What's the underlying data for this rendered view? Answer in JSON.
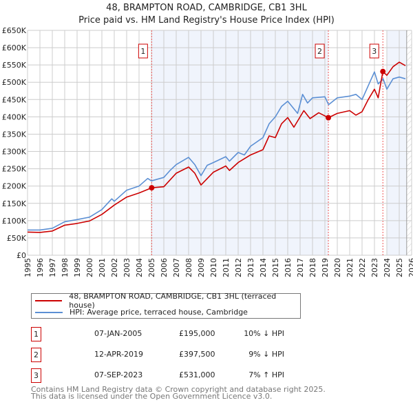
{
  "title": "48, BRAMPTON ROAD, CAMBRIDGE, CB1 3HL",
  "subtitle": "Price paid vs. HM Land Registry's House Price Index (HPI)",
  "chart_data": {
    "type": "line",
    "xlim": [
      1995,
      2026
    ],
    "ylim": [
      0,
      650000
    ],
    "x_ticks": [
      "1995",
      "1996",
      "1997",
      "1998",
      "1999",
      "2000",
      "2001",
      "2002",
      "2003",
      "2004",
      "2005",
      "2006",
      "2007",
      "2008",
      "2009",
      "2010",
      "2011",
      "2012",
      "2013",
      "2014",
      "2015",
      "2016",
      "2017",
      "2018",
      "2019",
      "2020",
      "2021",
      "2022",
      "2023",
      "2024",
      "2025",
      "2026"
    ],
    "y_ticks": [
      {
        "v": 0,
        "label": "£0"
      },
      {
        "v": 50000,
        "label": "£50K"
      },
      {
        "v": 100000,
        "label": "£100K"
      },
      {
        "v": 150000,
        "label": "£150K"
      },
      {
        "v": 200000,
        "label": "£200K"
      },
      {
        "v": 250000,
        "label": "£250K"
      },
      {
        "v": 300000,
        "label": "£300K"
      },
      {
        "v": 350000,
        "label": "£350K"
      },
      {
        "v": 400000,
        "label": "£400K"
      },
      {
        "v": 450000,
        "label": "£450K"
      },
      {
        "v": 500000,
        "label": "£500K"
      },
      {
        "v": 550000,
        "label": "£550K"
      },
      {
        "v": 600000,
        "label": "£600K"
      },
      {
        "v": 650000,
        "label": "£650K"
      }
    ],
    "grid": true,
    "series": [
      {
        "name": "48, BRAMPTON ROAD, CAMBRIDGE, CB1 3HL (terraced house)",
        "color": "#cc0000",
        "x": [
          1995,
          1996,
          1997,
          1998,
          1999,
          2000,
          2001,
          2002,
          2003,
          2004,
          2005.02,
          2006,
          2007,
          2008,
          2008.5,
          2009,
          2010,
          2011,
          2011.3,
          2012,
          2013,
          2014,
          2014.5,
          2015,
          2015.5,
          2016,
          2016.5,
          2017.3,
          2017.8,
          2018.5,
          2019.28,
          2020,
          2021,
          2021.5,
          2022,
          2022.5,
          2023,
          2023.3,
          2023.68,
          2024,
          2024.5,
          2025,
          2025.5
        ],
        "y": [
          67000,
          66000,
          70000,
          87000,
          92000,
          99000,
          118000,
          145000,
          168000,
          180000,
          195000,
          198000,
          237000,
          255000,
          237000,
          203000,
          240000,
          258000,
          245000,
          268000,
          290000,
          305000,
          345000,
          340000,
          380000,
          398000,
          370000,
          418000,
          395000,
          412000,
          397500,
          410000,
          418000,
          405000,
          415000,
          450000,
          480000,
          455000,
          531000,
          520000,
          545000,
          558000,
          548000
        ]
      },
      {
        "name": "HPI: Average price, terraced house, Cambridge",
        "color": "#5b8fd4",
        "x": [
          1995,
          1996,
          1997,
          1998,
          1999,
          2000,
          2001,
          2001.8,
          2002,
          2003,
          2004,
          2004.7,
          2005,
          2006,
          2006.5,
          2007,
          2008,
          2008.5,
          2009,
          2009.5,
          2010,
          2011,
          2011.3,
          2012,
          2012.5,
          2013,
          2014,
          2014.5,
          2015,
          2015.5,
          2016,
          2016.8,
          2017.2,
          2017.6,
          2018,
          2019,
          2019.3,
          2020,
          2021,
          2021.5,
          2022,
          2022.5,
          2023,
          2023.3,
          2023.7,
          2024,
          2024.5,
          2025,
          2025.5
        ],
        "y": [
          73000,
          73000,
          78000,
          97000,
          103000,
          110000,
          132000,
          163000,
          156000,
          188000,
          200000,
          222000,
          215000,
          225000,
          245000,
          262000,
          283000,
          262000,
          230000,
          260000,
          268000,
          285000,
          272000,
          297000,
          290000,
          315000,
          340000,
          380000,
          400000,
          430000,
          445000,
          410000,
          465000,
          440000,
          455000,
          458000,
          435000,
          455000,
          460000,
          465000,
          450000,
          490000,
          530000,
          495000,
          510000,
          480000,
          510000,
          515000,
          510000
        ]
      }
    ],
    "sales": [
      {
        "label": "1",
        "x": 2005.02,
        "y": 195000
      },
      {
        "label": "2",
        "x": 2019.28,
        "y": 397500
      },
      {
        "label": "3",
        "x": 2023.68,
        "y": 531000
      }
    ],
    "legend": "below"
  },
  "legend": {
    "property": "48, BRAMPTON ROAD, CAMBRIDGE, CB1 3HL (terraced house)",
    "hpi": "HPI: Average price, terraced house, Cambridge"
  },
  "transactions": [
    {
      "num": "1",
      "date": "07-JAN-2005",
      "price": "£195,000",
      "hpi": "10% ↓ HPI"
    },
    {
      "num": "2",
      "date": "12-APR-2019",
      "price": "£397,500",
      "hpi": "9% ↓ HPI"
    },
    {
      "num": "3",
      "date": "07-SEP-2023",
      "price": "£531,000",
      "hpi": "7% ↑ HPI"
    }
  ],
  "footer": {
    "line1": "Contains HM Land Registry data © Crown copyright and database right 2025.",
    "line2": "This data is licensed under the Open Government Licence v3.0."
  }
}
